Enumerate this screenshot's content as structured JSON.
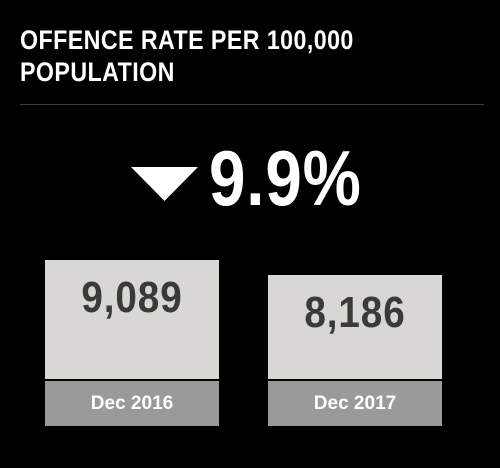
{
  "title": "OFFENCE RATE PER 100,000 POPULATION",
  "change": {
    "direction": "down",
    "icon": "down-triangle-icon",
    "value": "9.9%"
  },
  "cards": [
    {
      "value": "9,089",
      "label": "Dec 2016"
    },
    {
      "value": "8,186",
      "label": "Dec 2017"
    }
  ],
  "colors": {
    "background": "#000000",
    "card": "#d9d7d3",
    "card_label": "#9a9a9a",
    "text": "#ffffff",
    "value_text": "#3a3a3a"
  }
}
